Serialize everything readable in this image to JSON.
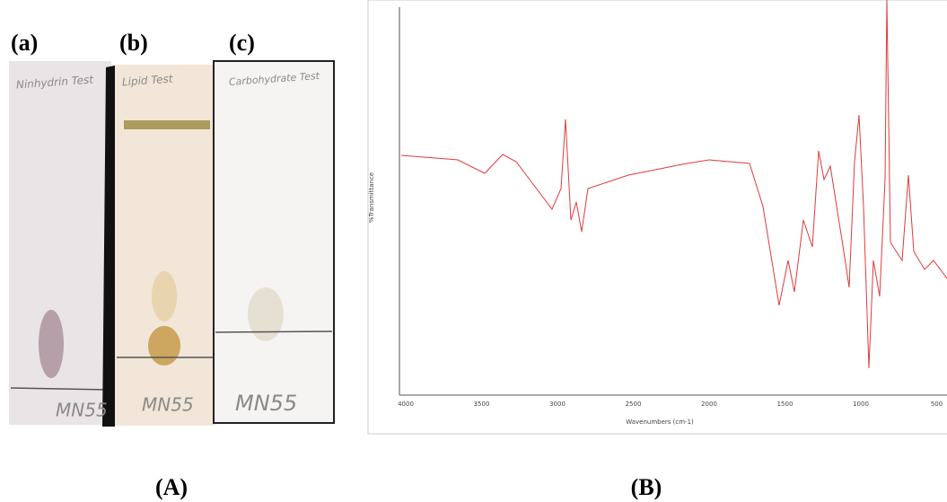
{
  "panels": {
    "A": {
      "label": "(A)",
      "plates": [
        {
          "label": "(a)",
          "test": "Ninhydrin Test",
          "sample": "MN55"
        },
        {
          "label": "(b)",
          "test": "Lipid Test",
          "sample": "MN55"
        },
        {
          "label": "(c)",
          "test": "Carbohydrate Test",
          "sample": "MN55"
        }
      ]
    },
    "B": {
      "label": "(B)",
      "x_axis_label": "Wavenumbers (cm-1)",
      "y_axis_label": "%Transmittance",
      "x_ticks": [
        "4000",
        "3500",
        "3000",
        "2500",
        "2000",
        "1500",
        "1000",
        "500"
      ]
    }
  }
}
